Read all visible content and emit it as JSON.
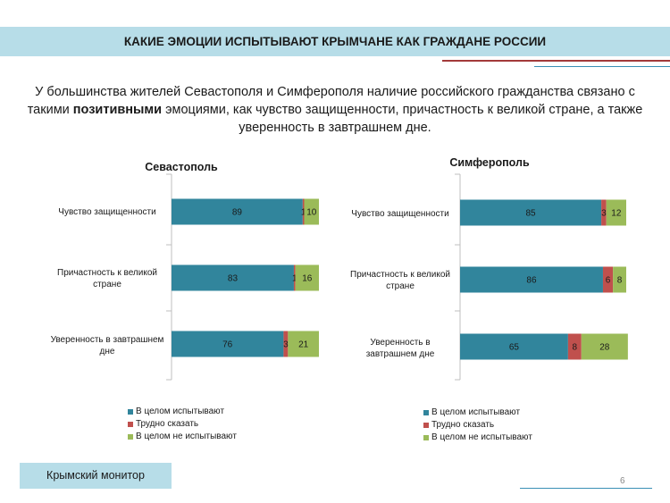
{
  "header": {
    "title": "КАКИЕ ЭМОЦИИ ИСПЫТЫВАЮТ КРЫМЧАНЕ КАК ГРАЖДАНЕ РОССИИ"
  },
  "subtitle": {
    "part1": "У большинства жителей Севастополя и Симферополя наличие российского гражданства связано с такими ",
    "bold": "позитивными",
    "part2": " эмоциями, как чувство защищенности, причастность к великой стране, а также уверенность в завтрашнем дне."
  },
  "colors": {
    "header_bg": "#b7dde8",
    "accent_red": "#a33a3a",
    "accent_blue": "#3a8fb5",
    "series_blue": "#31859c",
    "series_red": "#c0504d",
    "series_green": "#9bbb59"
  },
  "legend": {
    "items": [
      {
        "label": "В целом испытывают",
        "color": "#31859c"
      },
      {
        "label": "Трудно сказать",
        "color": "#c0504d"
      },
      {
        "label": "В целом не испытывают",
        "color": "#9bbb59"
      }
    ]
  },
  "chart_data": [
    {
      "type": "bar",
      "orientation": "horizontal",
      "stacked": true,
      "title": "Севастополь",
      "categories": [
        "Чувство защищенности",
        "Причастность к великой стране",
        "Уверенность в завтрашнем дне"
      ],
      "series": [
        {
          "name": "В целом испытывают",
          "color": "#31859c",
          "values": [
            89,
            83,
            76
          ]
        },
        {
          "name": "Трудно сказать",
          "color": "#c0504d",
          "values": [
            1,
            1,
            3
          ]
        },
        {
          "name": "В целом не испытывают",
          "color": "#9bbb59",
          "values": [
            10,
            16,
            21
          ]
        }
      ],
      "xlim": [
        0,
        100
      ],
      "grid": false,
      "legend_position": "bottom"
    },
    {
      "type": "bar",
      "orientation": "horizontal",
      "stacked": true,
      "title": "Симферополь",
      "categories": [
        "Чувство защищенности",
        "Причастность к великой стране",
        "Уверенность в завтрашнем дне"
      ],
      "series": [
        {
          "name": "В целом испытывают",
          "color": "#31859c",
          "values": [
            85,
            86,
            65
          ]
        },
        {
          "name": "Трудно сказать",
          "color": "#c0504d",
          "values": [
            3,
            6,
            8
          ]
        },
        {
          "name": "В целом не испытывают",
          "color": "#9bbb59",
          "values": [
            12,
            8,
            28
          ]
        }
      ],
      "xlim": [
        0,
        100
      ],
      "grid": false,
      "legend_position": "bottom"
    }
  ],
  "footer": {
    "label": "Крымский монитор",
    "page_number": "6"
  }
}
